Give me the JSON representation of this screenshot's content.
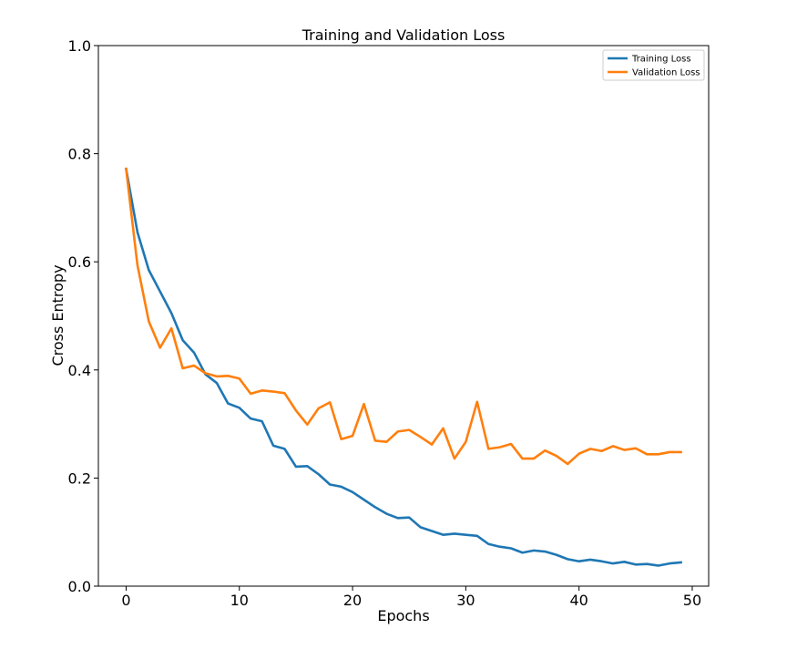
{
  "chart_data": {
    "type": "line",
    "title": "Training and Validation Loss",
    "xlabel": "Epochs",
    "ylabel": "Cross Entropy",
    "xlim": [
      -2.45,
      51.45
    ],
    "ylim": [
      0.0,
      1.0
    ],
    "xticks": [
      0,
      10,
      20,
      30,
      40,
      50
    ],
    "yticks": [
      0.0,
      0.2,
      0.4,
      0.6,
      0.8,
      1.0
    ],
    "xtick_labels": [
      "0",
      "10",
      "20",
      "30",
      "40",
      "50"
    ],
    "ytick_labels": [
      "0.0",
      "0.2",
      "0.4",
      "0.6",
      "0.8",
      "1.0"
    ],
    "grid": false,
    "legend": "top-right",
    "x": [
      0,
      1,
      2,
      3,
      4,
      5,
      6,
      7,
      8,
      9,
      10,
      11,
      12,
      13,
      14,
      15,
      16,
      17,
      18,
      19,
      20,
      21,
      22,
      23,
      24,
      25,
      26,
      27,
      28,
      29,
      30,
      31,
      32,
      33,
      34,
      35,
      36,
      37,
      38,
      39,
      40,
      41,
      42,
      43,
      44,
      45,
      46,
      47,
      48,
      49
    ],
    "series": [
      {
        "name": "Training Loss",
        "color": "#1f77b4",
        "values": [
          0.772,
          0.655,
          0.585,
          0.545,
          0.505,
          0.455,
          0.432,
          0.392,
          0.376,
          0.338,
          0.33,
          0.31,
          0.305,
          0.26,
          0.254,
          0.221,
          0.222,
          0.207,
          0.188,
          0.184,
          0.174,
          0.16,
          0.146,
          0.134,
          0.126,
          0.127,
          0.109,
          0.102,
          0.095,
          0.097,
          0.095,
          0.093,
          0.078,
          0.073,
          0.07,
          0.062,
          0.066,
          0.064,
          0.058,
          0.05,
          0.046,
          0.049,
          0.046,
          0.042,
          0.045,
          0.04,
          0.041,
          0.038,
          0.042,
          0.044
        ]
      },
      {
        "name": "Validation Loss",
        "color": "#ff7f0e",
        "values": [
          0.772,
          0.594,
          0.49,
          0.441,
          0.477,
          0.403,
          0.408,
          0.394,
          0.388,
          0.389,
          0.384,
          0.356,
          0.362,
          0.36,
          0.357,
          0.325,
          0.299,
          0.329,
          0.34,
          0.272,
          0.278,
          0.337,
          0.269,
          0.267,
          0.286,
          0.289,
          0.276,
          0.262,
          0.292,
          0.236,
          0.267,
          0.341,
          0.254,
          0.257,
          0.263,
          0.236,
          0.236,
          0.251,
          0.241,
          0.226,
          0.245,
          0.254,
          0.25,
          0.259,
          0.252,
          0.255,
          0.244,
          0.244,
          0.248,
          0.248
        ]
      }
    ]
  }
}
